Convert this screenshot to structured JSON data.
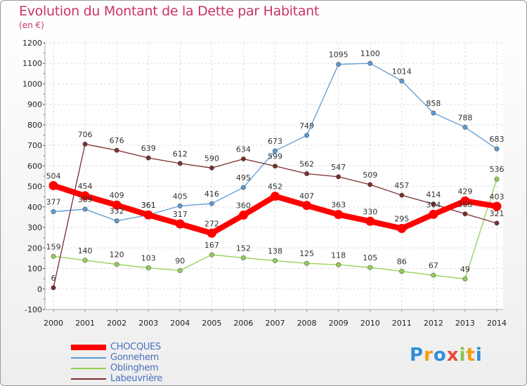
{
  "title": "Evolution du Montant de la Dette par Habitant",
  "subtitle": "(en €)",
  "logo_text": "Proxiti",
  "chart_data": {
    "type": "line",
    "title": "Evolution du Montant de la Dette par Habitant",
    "ylabel": "(en €)",
    "xlabel": "",
    "x": [
      2000,
      2001,
      2002,
      2003,
      2004,
      2005,
      2006,
      2007,
      2008,
      2009,
      2010,
      2011,
      2012,
      2013,
      2014
    ],
    "ylim": [
      -100,
      1200
    ],
    "yticks": [
      -100,
      0,
      100,
      200,
      300,
      400,
      500,
      600,
      700,
      800,
      900,
      1000,
      1100,
      1200
    ],
    "grid": true,
    "legend_position": "bottom-left",
    "series": [
      {
        "name": "CHOCQUES",
        "color": "#ff0000",
        "width": "thick",
        "values": [
          504,
          454,
          409,
          361,
          317,
          272,
          360,
          452,
          407,
          363,
          330,
          295,
          364,
          429,
          403
        ]
      },
      {
        "name": "Gonnehem",
        "color": "#5b9bd5",
        "width": "thin",
        "values": [
          377,
          389,
          332,
          361,
          405,
          416,
          495,
          673,
          749,
          1095,
          1100,
          1014,
          858,
          788,
          683
        ]
      },
      {
        "name": "Oblinghem",
        "color": "#92d050",
        "width": "thin",
        "values": [
          159,
          140,
          120,
          103,
          90,
          167,
          152,
          138,
          125,
          118,
          105,
          86,
          67,
          49,
          536
        ]
      },
      {
        "name": "Labeuvrière",
        "color": "#7b2c2c",
        "width": "thin",
        "values": [
          6,
          706,
          676,
          639,
          612,
          590,
          634,
          599,
          562,
          547,
          509,
          457,
          414,
          366,
          321
        ]
      }
    ]
  }
}
